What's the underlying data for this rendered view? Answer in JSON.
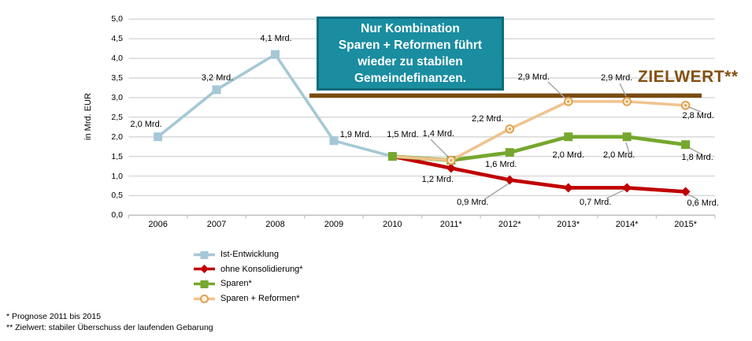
{
  "callout": {
    "lines": [
      "Nur Kombination",
      "Sparen + Reformen führt",
      "wieder zu stabilen",
      "Gemeindefinanzen."
    ]
  },
  "target": {
    "label": "ZIELWERT**",
    "value": 3.05,
    "color": "#7a4b10"
  },
  "axis": {
    "ylabel": "in Mrd. EUR"
  },
  "legend": {
    "items": [
      {
        "label": "Ist-Entwicklung",
        "marker": "square",
        "color": "#a5c8d6"
      },
      {
        "label": "ohne Konsolidierung*",
        "marker": "diamond",
        "color": "#c00000"
      },
      {
        "label": "Sparen*",
        "marker": "square",
        "color": "#76a72f"
      },
      {
        "label": "Sparen + Reformen*",
        "marker": "circle",
        "color": "#f0c38e"
      }
    ]
  },
  "footnotes": [
    "* Prognose 2011 bis 2015",
    "** Zielwert: stabiler Überschuss der laufenden Gebarung"
  ],
  "chart_data": {
    "type": "line",
    "categories": [
      "2006",
      "2007",
      "2008",
      "2009",
      "2010",
      "2011*",
      "2012*",
      "2013*",
      "2014*",
      "2015*"
    ],
    "ylim": [
      0,
      5.5
    ],
    "ytick_step": 0.5,
    "grid": true,
    "legend_position": "bottom-left",
    "series": [
      {
        "name": "Ist-Entwicklung",
        "color": "#a5c8d6",
        "marker": "square",
        "start_index": 0,
        "values": [
          2.0,
          3.2,
          4.1,
          1.9,
          1.5
        ],
        "point_labels": [
          "2,0 Mrd.",
          "3,2 Mrd.",
          "4,1 Mrd.",
          "1,9 Mrd.",
          "1,5 Mrd."
        ]
      },
      {
        "name": "ohne Konsolidierung*",
        "color": "#c00000",
        "marker": "diamond",
        "start_index": 4,
        "values": [
          1.5,
          1.2,
          0.9,
          0.7,
          0.7,
          0.6
        ],
        "point_labels": [
          null,
          "1,2 Mrd.",
          "0,9 Mrd.",
          null,
          "0,7 Mrd.",
          "0,6 Mrd."
        ]
      },
      {
        "name": "Sparen*",
        "color": "#76a72f",
        "marker": "square",
        "start_index": 4,
        "values": [
          1.5,
          1.4,
          1.6,
          2.0,
          2.0,
          1.8
        ],
        "point_labels": [
          null,
          null,
          "1,6 Mrd.",
          "2,0 Mrd.",
          "2,0 Mrd.",
          "1,8 Mrd."
        ]
      },
      {
        "name": "Sparen + Reformen*",
        "color": "#f0c38e",
        "marker": "circle",
        "start_index": 4,
        "values": [
          1.5,
          1.4,
          2.2,
          2.9,
          2.9,
          2.8
        ],
        "point_labels": [
          null,
          "1,4 Mrd.",
          "2,2 Mrd.",
          "2,9 Mrd.",
          "2,9 Mrd.",
          "2,8 Mrd."
        ]
      }
    ],
    "target_line": {
      "label": "ZIELWERT**",
      "value": 3.05
    },
    "annotation": "Nur Kombination Sparen + Reformen führt wieder zu stabilen Gemeindefinanzen."
  }
}
